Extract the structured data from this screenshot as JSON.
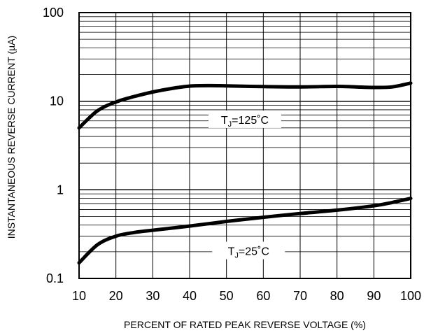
{
  "chart_data": {
    "type": "line",
    "x_axis": {
      "label": "PERCENT OF RATED PEAK REVERSE VOLTAGE (%)",
      "range": [
        10,
        100
      ],
      "ticks": [
        10,
        20,
        30,
        40,
        50,
        60,
        70,
        80,
        90,
        100
      ],
      "tick_labels": [
        "10",
        "20",
        "30",
        "40",
        "50",
        "60",
        "70",
        "80",
        "90",
        "100"
      ]
    },
    "y_axis": {
      "label": "INSTANTANEOUS REVERSE CURRENT (µA)",
      "scale": "log",
      "range": [
        0.1,
        100
      ],
      "ticks": [
        0.1,
        1,
        10,
        100
      ],
      "tick_labels": [
        "0.1",
        "1",
        "10",
        "100"
      ]
    },
    "grid": true,
    "series": [
      {
        "label_main": "T",
        "label_sub": "J",
        "label_rest": "=125˚C",
        "x": [
          10,
          15,
          20,
          25,
          30,
          35,
          40,
          45,
          50,
          60,
          70,
          80,
          85,
          90,
          95,
          100
        ],
        "y": [
          5.0,
          7.8,
          9.8,
          11.3,
          12.7,
          13.9,
          14.8,
          15.0,
          14.9,
          14.6,
          14.5,
          14.7,
          14.5,
          14.3,
          14.5,
          16.0
        ]
      },
      {
        "label_main": "T",
        "label_sub": "J",
        "label_rest": "=25˚C",
        "x": [
          10,
          15,
          20,
          25,
          30,
          40,
          50,
          60,
          70,
          80,
          90,
          95,
          100
        ],
        "y": [
          0.15,
          0.24,
          0.3,
          0.33,
          0.35,
          0.39,
          0.44,
          0.49,
          0.54,
          0.59,
          0.66,
          0.72,
          0.8
        ]
      }
    ]
  }
}
